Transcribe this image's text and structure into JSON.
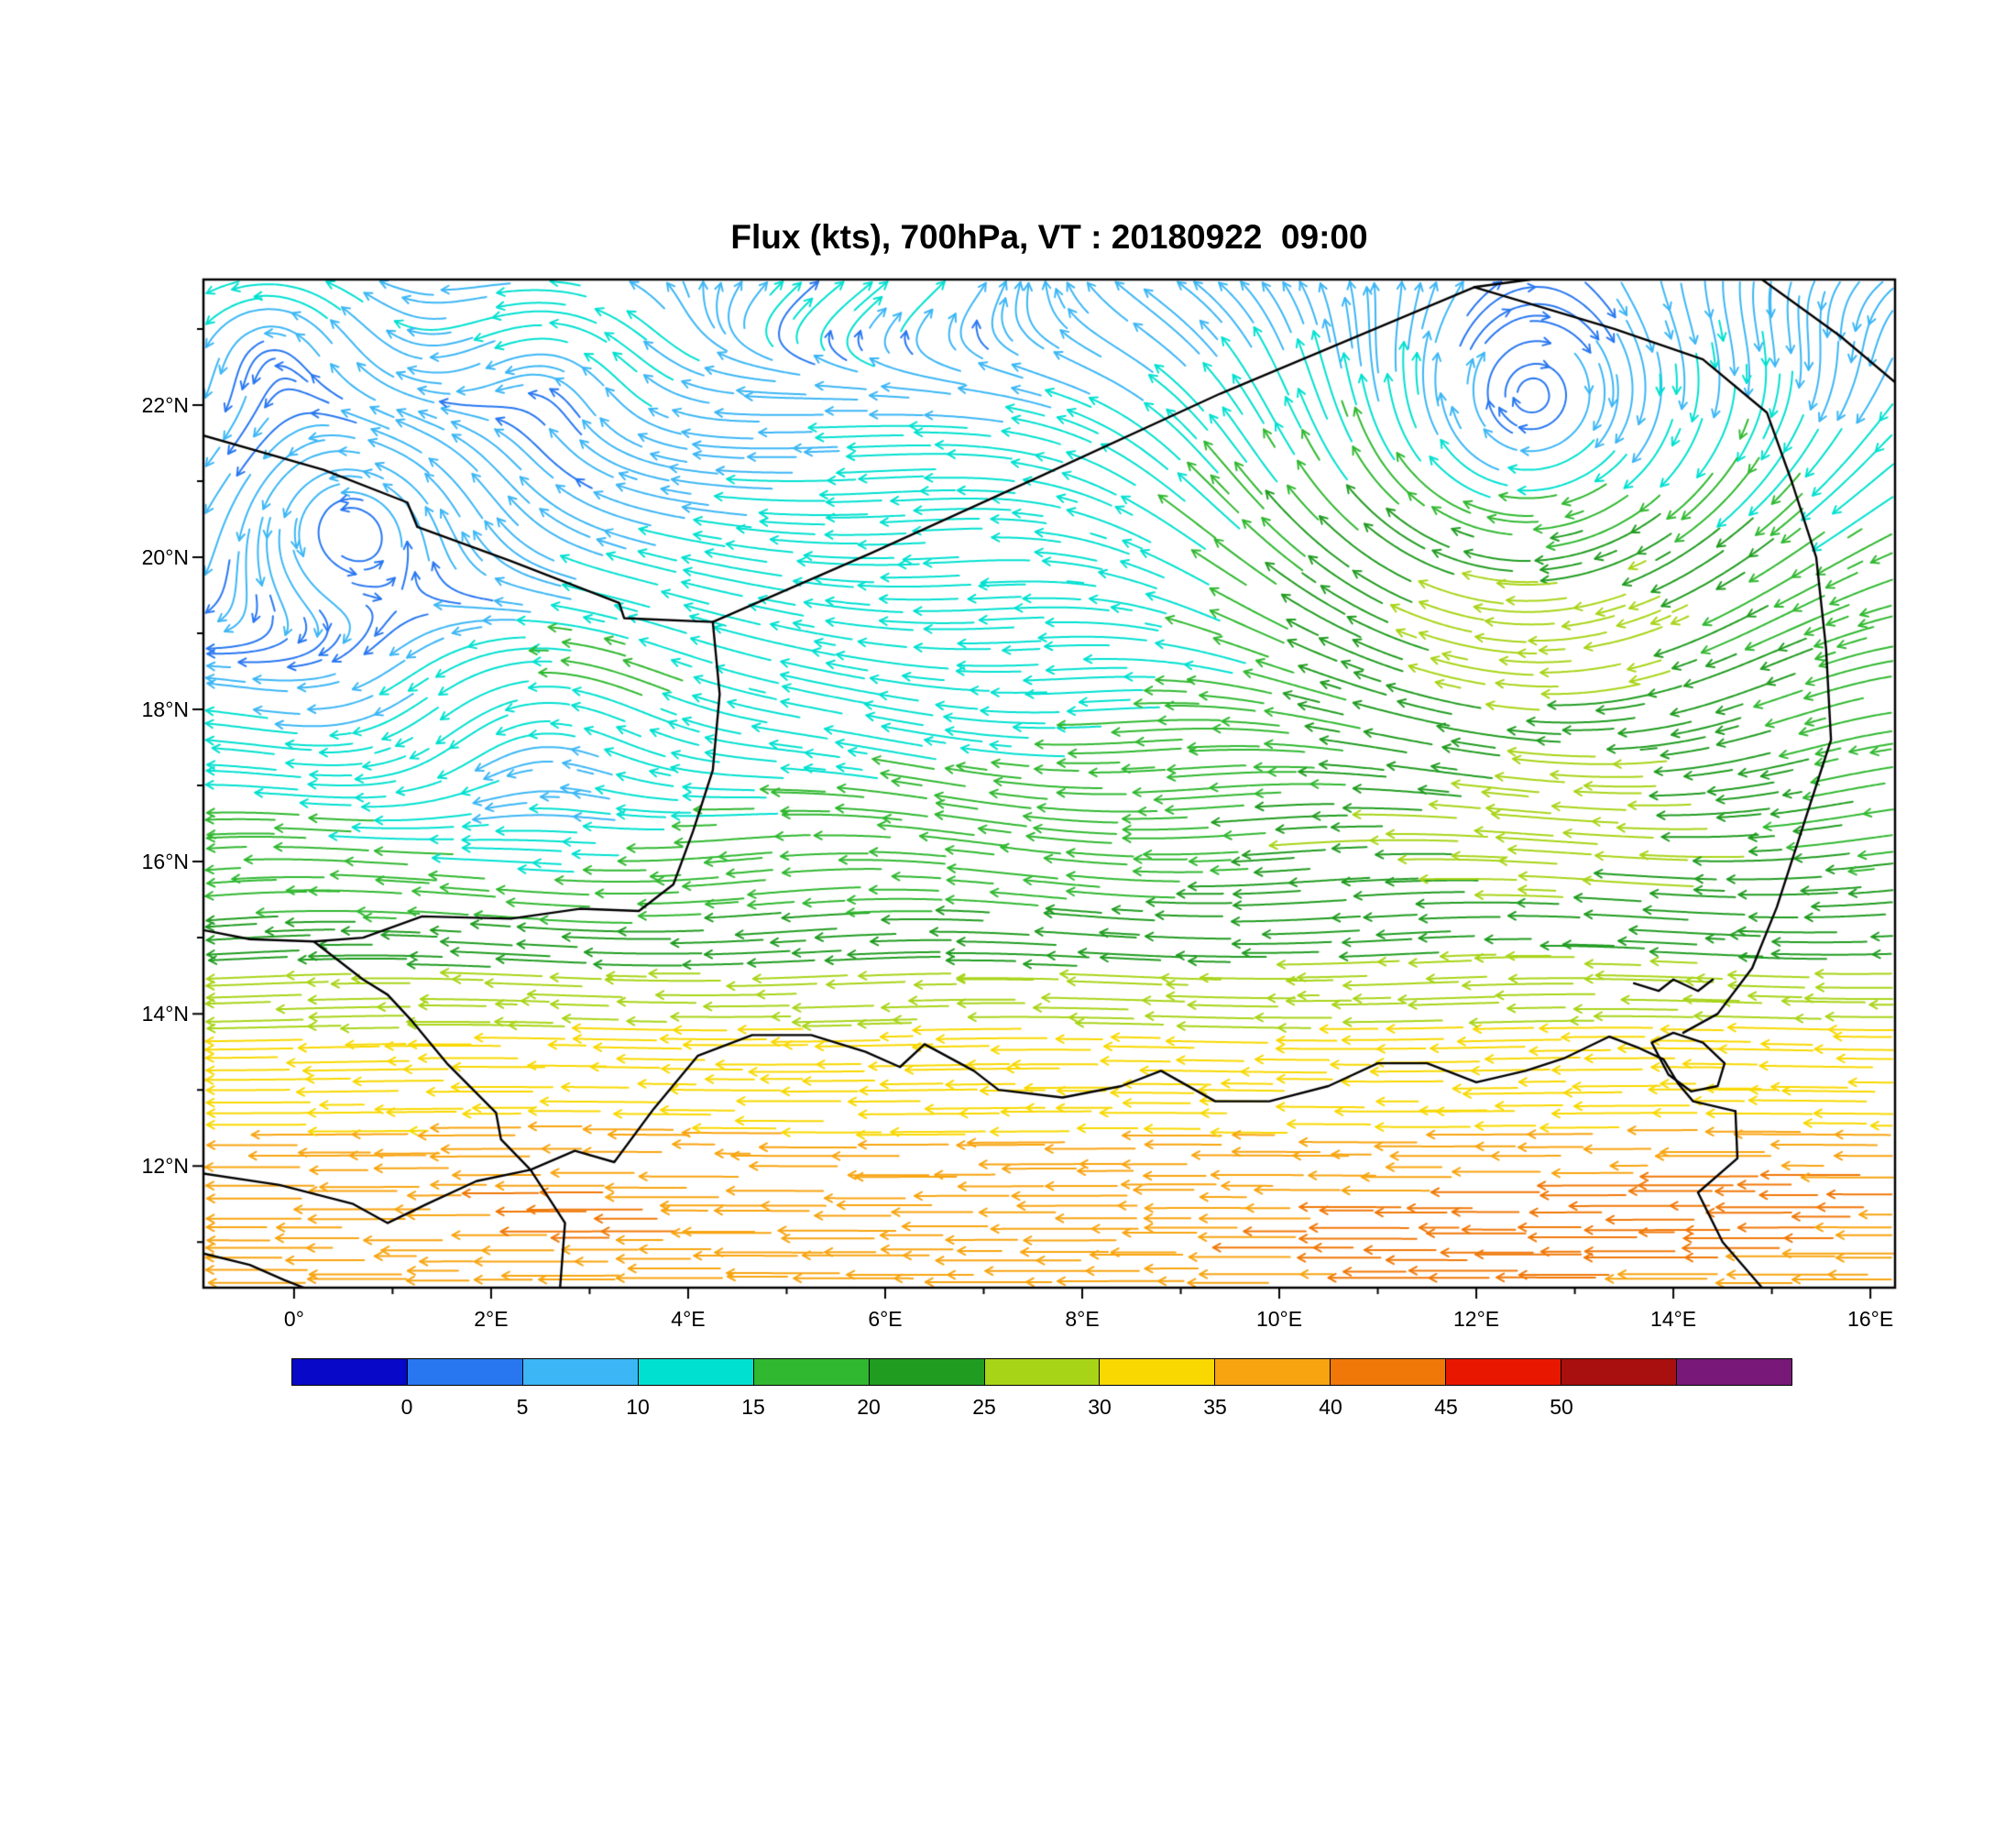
{
  "title": "Flux (kts), 700hPa, VT : 20180922  09:00",
  "chart_data": {
    "type": "streamline",
    "title": "Flux (kts), 700hPa, VT : 20180922  09:00",
    "units": "kts",
    "level": "700hPa",
    "valid_time": "20180922 09:00",
    "lon_range": [
      -0.92,
      16.25
    ],
    "lat_range": [
      10.4,
      23.65
    ],
    "x_ticks": [
      {
        "value": 0,
        "label": "0°"
      },
      {
        "value": 2,
        "label": "2°E"
      },
      {
        "value": 4,
        "label": "4°E"
      },
      {
        "value": 6,
        "label": "6°E"
      },
      {
        "value": 8,
        "label": "8°E"
      },
      {
        "value": 10,
        "label": "10°E"
      },
      {
        "value": 12,
        "label": "12°E"
      },
      {
        "value": 14,
        "label": "14°E"
      },
      {
        "value": 16,
        "label": "16°E"
      }
    ],
    "x_minor_ticks": [
      1,
      3,
      5,
      7,
      9,
      11,
      13,
      15
    ],
    "y_ticks": [
      {
        "value": 12,
        "label": "12°N"
      },
      {
        "value": 14,
        "label": "14°N"
      },
      {
        "value": 16,
        "label": "16°N"
      },
      {
        "value": 18,
        "label": "18°N"
      },
      {
        "value": 20,
        "label": "20°N"
      },
      {
        "value": 22,
        "label": "22°N"
      }
    ],
    "y_minor_ticks": [
      11,
      13,
      15,
      17,
      19,
      21,
      23
    ],
    "colorbar": {
      "boundary_values": [
        0,
        5,
        10,
        15,
        20,
        25,
        30,
        35,
        40,
        45,
        50
      ],
      "colors": [
        "#0808c8",
        "#2877f0",
        "#3cb6f5",
        "#00e0d0",
        "#30b830",
        "#209c20",
        "#a8d418",
        "#f8d800",
        "#f8a410",
        "#f07808",
        "#e81800",
        "#a81010",
        "#781878"
      ]
    },
    "wind_field": {
      "u_profile": [
        [
          10.4,
          -36
        ],
        [
          11.5,
          -37
        ],
        [
          12.3,
          -35
        ],
        [
          13.0,
          -32
        ],
        [
          13.8,
          -30
        ],
        [
          14.5,
          -26
        ],
        [
          15.1,
          -21
        ],
        [
          15.8,
          -18
        ],
        [
          16.6,
          -16.5
        ],
        [
          17.4,
          -14.5
        ],
        [
          18.4,
          -13
        ],
        [
          19.4,
          -11.5
        ],
        [
          20.4,
          -10.8
        ],
        [
          21.4,
          -10.2
        ],
        [
          22.4,
          -10.8
        ],
        [
          23.65,
          -11
        ]
      ],
      "vortices": [
        {
          "lon": 12.6,
          "lat": 21.2,
          "r": 2.8,
          "s": 13,
          "sense": "cw"
        },
        {
          "lon": 0.5,
          "lat": 20.6,
          "r": 1.6,
          "s": 7,
          "sense": "ccw"
        },
        {
          "lon": -0.3,
          "lat": 22.9,
          "r": 1.1,
          "s": 6,
          "sense": "ccw"
        },
        {
          "lon": 2.6,
          "lat": 22.6,
          "r": 1.0,
          "s": 5,
          "sense": "ccw"
        },
        {
          "lon": 2.4,
          "lat": 17.9,
          "r": 1.4,
          "s": 6,
          "sense": "ccw"
        }
      ],
      "streaks": [
        {
          "lon": 0.5,
          "lat": 20.5,
          "rx": 2.5,
          "ry": 2.5,
          "du": 8,
          "dv": 0
        },
        {
          "lon": 0.0,
          "lat": 23.2,
          "rx": 1.8,
          "ry": 1.2,
          "du": 6,
          "dv": 0
        },
        {
          "lon": 5.8,
          "lat": 23.6,
          "rx": 2.0,
          "ry": 0.9,
          "du": 22,
          "dv": 9
        },
        {
          "lon": 15.6,
          "lat": 22.8,
          "rx": 1.5,
          "ry": 1.0,
          "du": 6,
          "dv": 0
        },
        {
          "lon": 12.5,
          "lat": 16.3,
          "rx": 2.6,
          "ry": 1.1,
          "du": -8,
          "dv": 0
        },
        {
          "lon": 2.6,
          "lat": 11.4,
          "rx": 2.2,
          "ry": 1.0,
          "du": -4,
          "dv": 0
        },
        {
          "lon": 11.5,
          "lat": 11.0,
          "rx": 3.0,
          "ry": 1.1,
          "du": -5,
          "dv": 0
        },
        {
          "lon": 14.5,
          "lat": 11.6,
          "rx": 1.2,
          "ry": 0.7,
          "du": -7,
          "dv": 0
        }
      ],
      "wave": {
        "amp": 2.4,
        "k": 1.05,
        "phase": 0.8,
        "lat_center": 17.6,
        "lat_width": 3.4
      }
    },
    "borders": [
      {
        "name": "mali-algeria",
        "points": [
          [
            -0.92,
            21.6
          ],
          [
            0.3,
            21.15
          ],
          [
            1.15,
            20.72
          ],
          [
            1.25,
            20.4
          ],
          [
            2.2,
            19.95
          ],
          [
            3.3,
            19.4
          ],
          [
            3.35,
            19.2
          ],
          [
            4.25,
            19.15
          ]
        ]
      },
      {
        "name": "algeria-niger",
        "points": [
          [
            4.25,
            19.15
          ],
          [
            5.85,
            20.05
          ],
          [
            7.55,
            21.05
          ],
          [
            9.4,
            22.15
          ],
          [
            11.98,
            23.55
          ]
        ]
      },
      {
        "name": "niger-libya",
        "points": [
          [
            11.98,
            23.55
          ],
          [
            12.55,
            23.65
          ]
        ]
      },
      {
        "name": "niger-chad",
        "points": [
          [
            11.98,
            23.55
          ],
          [
            13.4,
            23.0
          ],
          [
            14.3,
            22.6
          ],
          [
            14.95,
            21.9
          ],
          [
            15.2,
            21.0
          ],
          [
            15.45,
            20.0
          ],
          [
            15.55,
            18.8
          ],
          [
            15.6,
            17.6
          ],
          [
            15.3,
            16.4
          ],
          [
            15.05,
            15.4
          ],
          [
            14.8,
            14.6
          ],
          [
            14.45,
            14.0
          ],
          [
            14.1,
            13.75
          ]
        ]
      },
      {
        "name": "libya-chad-ne",
        "points": [
          [
            14.9,
            23.65
          ],
          [
            15.7,
            22.9
          ],
          [
            16.25,
            22.3
          ]
        ]
      },
      {
        "name": "mali-niger",
        "points": [
          [
            4.25,
            19.15
          ],
          [
            4.32,
            18.2
          ],
          [
            4.25,
            17.2
          ],
          [
            4.05,
            16.4
          ],
          [
            3.85,
            15.7
          ],
          [
            3.5,
            15.35
          ],
          [
            2.9,
            15.38
          ],
          [
            2.2,
            15.25
          ],
          [
            1.3,
            15.28
          ],
          [
            0.7,
            15.0
          ],
          [
            0.2,
            14.95
          ],
          [
            -0.45,
            14.98
          ],
          [
            -0.92,
            15.1
          ]
        ]
      },
      {
        "name": "burkina-niger",
        "points": [
          [
            0.2,
            14.95
          ],
          [
            0.7,
            14.45
          ],
          [
            0.95,
            14.25
          ],
          [
            1.2,
            13.9
          ],
          [
            1.55,
            13.35
          ],
          [
            2.05,
            12.7
          ],
          [
            2.1,
            12.35
          ],
          [
            2.4,
            11.95
          ]
        ]
      },
      {
        "name": "benin-nigeria",
        "points": [
          [
            2.4,
            11.95
          ],
          [
            2.75,
            11.25
          ],
          [
            2.7,
            10.4
          ]
        ]
      },
      {
        "name": "burkina-south",
        "points": [
          [
            -0.92,
            11.9
          ],
          [
            -0.15,
            11.75
          ],
          [
            0.6,
            11.5
          ],
          [
            0.95,
            11.25
          ],
          [
            1.35,
            11.5
          ],
          [
            1.85,
            11.8
          ],
          [
            2.4,
            11.95
          ]
        ]
      },
      {
        "name": "bottom-left",
        "points": [
          [
            -0.92,
            10.85
          ],
          [
            -0.45,
            10.7
          ],
          [
            -0.1,
            10.5
          ],
          [
            0.1,
            10.4
          ]
        ]
      },
      {
        "name": "niger-nigeria",
        "points": [
          [
            2.4,
            11.95
          ],
          [
            2.85,
            12.2
          ],
          [
            3.25,
            12.05
          ],
          [
            3.65,
            12.75
          ],
          [
            4.1,
            13.45
          ],
          [
            4.65,
            13.72
          ],
          [
            5.25,
            13.72
          ],
          [
            5.8,
            13.5
          ],
          [
            6.15,
            13.3
          ],
          [
            6.4,
            13.6
          ],
          [
            6.9,
            13.25
          ],
          [
            7.15,
            13.0
          ],
          [
            7.8,
            12.9
          ],
          [
            8.4,
            13.05
          ],
          [
            8.8,
            13.25
          ],
          [
            9.35,
            12.85
          ],
          [
            9.9,
            12.85
          ],
          [
            10.5,
            13.05
          ],
          [
            11.0,
            13.35
          ],
          [
            11.5,
            13.35
          ],
          [
            12.0,
            13.1
          ],
          [
            12.5,
            13.25
          ],
          [
            12.9,
            13.42
          ],
          [
            13.35,
            13.7
          ],
          [
            13.65,
            13.55
          ],
          [
            13.9,
            13.4
          ],
          [
            14.05,
            13.08
          ],
          [
            14.2,
            12.85
          ],
          [
            14.63,
            12.72
          ]
        ]
      },
      {
        "name": "cameroon-chad",
        "points": [
          [
            14.63,
            12.72
          ],
          [
            14.65,
            12.1
          ],
          [
            14.25,
            11.65
          ],
          [
            14.5,
            11.0
          ],
          [
            14.9,
            10.4
          ]
        ]
      },
      {
        "name": "lake-chad",
        "points": [
          [
            13.78,
            13.62
          ],
          [
            14.0,
            13.75
          ],
          [
            14.3,
            13.62
          ],
          [
            14.52,
            13.35
          ],
          [
            14.45,
            13.05
          ],
          [
            14.18,
            12.98
          ],
          [
            13.95,
            13.2
          ],
          [
            13.78,
            13.62
          ]
        ]
      },
      {
        "name": "komadugu",
        "points": [
          [
            13.6,
            14.4
          ],
          [
            13.85,
            14.3
          ],
          [
            14.0,
            14.45
          ],
          [
            14.25,
            14.3
          ],
          [
            14.4,
            14.45
          ]
        ]
      }
    ]
  }
}
